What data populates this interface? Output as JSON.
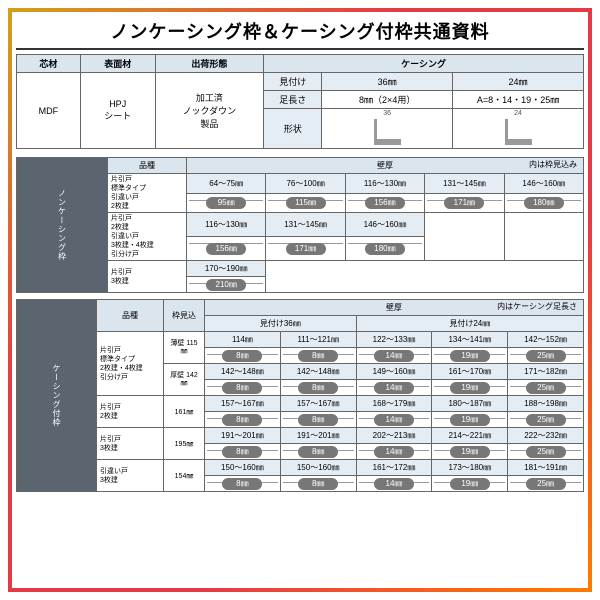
{
  "title": "ノンケーシング枠＆ケーシング付枠共通資料",
  "t1": {
    "h": [
      "芯材",
      "表面材",
      "出荷形態",
      "ケーシング"
    ],
    "sub": [
      "見付け",
      "36㎜",
      "24㎜"
    ],
    "r1": [
      "足長さ",
      "8㎜（2×4用）",
      "A=8・14・19・25㎜"
    ],
    "c1": "MDF",
    "c2": "HPJ\nシート",
    "c3": "加工済\nノックダウン\n製品",
    "shapelbl": "形状",
    "d1": "36",
    "d2": "24",
    "d1b": "8",
    "d2b": "A"
  },
  "grp1": {
    "label": "ノンケーシング枠",
    "hinsyu": "品種",
    "kabe": "壁厚",
    "legend": "内は枠見込み",
    "rows": [
      {
        "names": [
          "片引戸",
          "標準タイプ",
          "引違い戸",
          "2枚建"
        ],
        "ranges": [
          "64～75㎜",
          "76～100㎜",
          "116～130㎜",
          "131～145㎜",
          "146～160㎜"
        ],
        "pills": [
          "95㎜",
          "115㎜",
          "156㎜",
          "171㎜",
          "180㎜"
        ]
      },
      {
        "names": [
          "片引戸",
          "2枚建",
          "引違い戸",
          "3枚建・4枚建",
          "引分け戸"
        ],
        "ranges": [
          "116～130㎜",
          "131～145㎜",
          "146～160㎜",
          "",
          ""
        ],
        "pills": [
          "156㎜",
          "171㎜",
          "180㎜",
          "",
          ""
        ]
      },
      {
        "names": [
          "片引戸",
          "3枚建"
        ],
        "ranges": [
          "170～190㎜",
          "",
          "",
          "",
          ""
        ],
        "pills": [
          "210㎜",
          "",
          "",
          "",
          ""
        ]
      }
    ]
  },
  "grp2": {
    "label": "ケーシング付枠",
    "hinsyu": "品種",
    "wakumi": "枠見込",
    "kabe": "壁厚",
    "legend": "内はケーシング足長さ",
    "sub": [
      "見付け36㎜",
      "見付け24㎜"
    ],
    "rows": [
      {
        "names": [
          "片引戸",
          "標準タイプ",
          "2枚建・4枚建",
          "引分け戸"
        ],
        "wm": [
          "薄壁 115㎜",
          "厚壁 142㎜"
        ],
        "r1": [
          "114㎜",
          "111～121㎜",
          "122～133㎜",
          "134～141㎜",
          "142～152㎜"
        ],
        "p1": [
          "8㎜",
          "8㎜",
          "14㎜",
          "19㎜",
          "25㎜"
        ],
        "r2": [
          "142～148㎜",
          "142～148㎜",
          "149～160㎜",
          "161～170㎜",
          "171～182㎜"
        ],
        "p2": [
          "8㎜",
          "8㎜",
          "14㎜",
          "19㎜",
          "25㎜"
        ]
      },
      {
        "names": [
          "片引戸",
          "2枚建"
        ],
        "wm": [
          "161㎜"
        ],
        "r1": [
          "157～167㎜",
          "157～167㎜",
          "168～179㎜",
          "180～187㎜",
          "188～198㎜"
        ],
        "p1": [
          "8㎜",
          "8㎜",
          "14㎜",
          "19㎜",
          "25㎜"
        ]
      },
      {
        "names": [
          "片引戸",
          "3枚建"
        ],
        "wm": [
          "195㎜"
        ],
        "r1": [
          "191～201㎜",
          "191～201㎜",
          "202～213㎜",
          "214～221㎜",
          "222～232㎜"
        ],
        "p1": [
          "8㎜",
          "8㎜",
          "14㎜",
          "19㎜",
          "25㎜"
        ]
      },
      {
        "names": [
          "引違い戸",
          "3枚建"
        ],
        "wm": [
          "154㎜"
        ],
        "r1": [
          "150～160㎜",
          "150～160㎜",
          "161～172㎜",
          "173～180㎜",
          "181～191㎜"
        ],
        "p1": [
          "8㎜",
          "8㎜",
          "14㎜",
          "19㎜",
          "25㎜"
        ]
      }
    ]
  }
}
